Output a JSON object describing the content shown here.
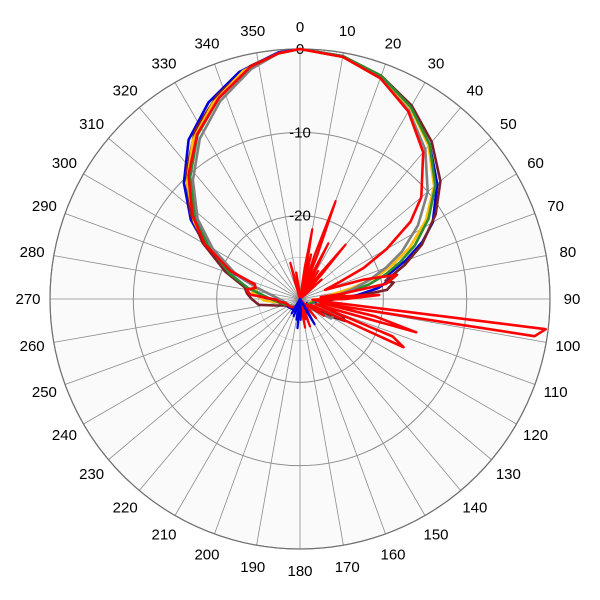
{
  "chart_data": {
    "type": "polar-line",
    "title": "",
    "angle_unit": "degrees",
    "angle_zero": "top",
    "angle_direction": "clockwise",
    "angle_ticks": [
      0,
      10,
      20,
      30,
      40,
      50,
      60,
      70,
      80,
      90,
      100,
      110,
      120,
      130,
      140,
      150,
      160,
      170,
      180,
      190,
      200,
      210,
      220,
      230,
      240,
      250,
      260,
      270,
      280,
      290,
      300,
      310,
      320,
      330,
      340,
      350
    ],
    "radial_ticks": [
      0,
      -10,
      -20
    ],
    "radial_range": [
      -30,
      0
    ],
    "grid": true,
    "series": [
      {
        "color": "#0000dd",
        "points": [
          [
            0,
            0
          ],
          [
            10,
            -0.4
          ],
          [
            20,
            -1.6
          ],
          [
            30,
            -3.5
          ],
          [
            40,
            -5.8
          ],
          [
            50,
            -8.5
          ],
          [
            60,
            -11.6
          ],
          [
            65,
            -13.8
          ],
          [
            70,
            -16.5
          ],
          [
            75,
            -19.2
          ],
          [
            78,
            -19.0
          ],
          [
            82,
            -20.5
          ],
          [
            86,
            -23
          ],
          [
            90,
            -25.5
          ],
          [
            95,
            -27.5
          ],
          [
            100,
            -28
          ],
          [
            120,
            -29
          ],
          [
            150,
            -29
          ],
          [
            180,
            -29
          ],
          [
            200,
            -28.5
          ],
          [
            250,
            -28
          ],
          [
            265,
            -27
          ],
          [
            272,
            -25.8
          ],
          [
            276,
            -24.8
          ],
          [
            282,
            -24.6
          ],
          [
            286,
            -24.2
          ],
          [
            292,
            -21
          ],
          [
            300,
            -16.8
          ],
          [
            306,
            -13.8
          ],
          [
            315,
            -10.3
          ],
          [
            325,
            -6.7
          ],
          [
            335,
            -4.0
          ],
          [
            345,
            -1.8
          ],
          [
            355,
            -0.3
          ],
          [
            360,
            0
          ]
        ]
      },
      {
        "color": "#7a1f2b",
        "points": [
          [
            0,
            0
          ],
          [
            10,
            -0.4
          ],
          [
            20,
            -1.5
          ],
          [
            30,
            -3.2
          ],
          [
            40,
            -5.4
          ],
          [
            50,
            -8.0
          ],
          [
            58,
            -10.8
          ],
          [
            66,
            -14.0
          ],
          [
            72,
            -16.8
          ],
          [
            75,
            -18.3
          ],
          [
            78,
            -19.5
          ],
          [
            80,
            -18.6
          ],
          [
            84,
            -19.5
          ],
          [
            88,
            -24
          ],
          [
            95,
            -27.5
          ],
          [
            110,
            -27
          ],
          [
            112,
            -24.5
          ],
          [
            116,
            -24.0
          ],
          [
            120,
            -26
          ],
          [
            140,
            -29
          ],
          [
            180,
            -29
          ],
          [
            240,
            -28.5
          ],
          [
            255,
            -27
          ],
          [
            262,
            -25
          ],
          [
            270,
            -24.2
          ],
          [
            276,
            -23.6
          ],
          [
            282,
            -23.2
          ],
          [
            290,
            -20.5
          ],
          [
            300,
            -16.5
          ],
          [
            308,
            -13.3
          ],
          [
            318,
            -9.6
          ],
          [
            328,
            -6.2
          ],
          [
            338,
            -3.6
          ],
          [
            348,
            -1.4
          ],
          [
            355,
            -0.4
          ],
          [
            360,
            0
          ]
        ]
      },
      {
        "color": "#ffbf00",
        "points": [
          [
            0,
            0
          ],
          [
            10,
            -0.5
          ],
          [
            20,
            -1.6
          ],
          [
            30,
            -3.5
          ],
          [
            40,
            -6.0
          ],
          [
            50,
            -9.0
          ],
          [
            58,
            -12.2
          ],
          [
            65,
            -15.5
          ],
          [
            70,
            -18.3
          ],
          [
            74,
            -20.5
          ],
          [
            78,
            -23.5
          ],
          [
            85,
            -27
          ],
          [
            100,
            -28.5
          ],
          [
            150,
            -29
          ],
          [
            180,
            -29
          ],
          [
            240,
            -28.5
          ],
          [
            260,
            -27.5
          ],
          [
            268,
            -25.6
          ],
          [
            274,
            -25.0
          ],
          [
            278,
            -24.2
          ],
          [
            283,
            -24.7
          ],
          [
            288,
            -23.6
          ],
          [
            293,
            -20.5
          ],
          [
            300,
            -17.2
          ],
          [
            306,
            -14.3
          ],
          [
            316,
            -10.5
          ],
          [
            326,
            -7.0
          ],
          [
            336,
            -4.3
          ],
          [
            346,
            -1.8
          ],
          [
            355,
            -0.4
          ],
          [
            360,
            0
          ]
        ]
      },
      {
        "color": "#2e8b2e",
        "points": [
          [
            0,
            0
          ],
          [
            10,
            -0.4
          ],
          [
            20,
            -1.5
          ],
          [
            30,
            -3.4
          ],
          [
            40,
            -5.8
          ],
          [
            50,
            -8.8
          ],
          [
            58,
            -11.8
          ],
          [
            65,
            -14.8
          ],
          [
            70,
            -17.3
          ],
          [
            74,
            -19.3
          ],
          [
            78,
            -21.5
          ],
          [
            84,
            -25
          ],
          [
            95,
            -28
          ],
          [
            150,
            -29
          ],
          [
            180,
            -29
          ],
          [
            240,
            -28.5
          ],
          [
            260,
            -27.5
          ],
          [
            270,
            -26.5
          ],
          [
            276,
            -25.5
          ],
          [
            282,
            -23.6
          ],
          [
            290,
            -21
          ],
          [
            300,
            -17.3
          ],
          [
            308,
            -14.0
          ],
          [
            318,
            -10.3
          ],
          [
            328,
            -6.8
          ],
          [
            338,
            -4.0
          ],
          [
            348,
            -1.5
          ],
          [
            355,
            -0.4
          ],
          [
            360,
            0
          ]
        ]
      },
      {
        "color": "#808080",
        "points": [
          [
            0,
            0
          ],
          [
            10,
            -0.5
          ],
          [
            20,
            -1.8
          ],
          [
            30,
            -3.9
          ],
          [
            40,
            -6.6
          ],
          [
            50,
            -10.0
          ],
          [
            58,
            -13.3
          ],
          [
            65,
            -16.5
          ],
          [
            70,
            -19.0
          ],
          [
            75,
            -21.5
          ],
          [
            80,
            -23.8
          ],
          [
            88,
            -26.5
          ],
          [
            95,
            -28
          ],
          [
            112,
            -27
          ],
          [
            116,
            -25.5
          ],
          [
            122,
            -25.6
          ],
          [
            130,
            -28
          ],
          [
            150,
            -29
          ],
          [
            180,
            -29
          ],
          [
            240,
            -28.5
          ],
          [
            262,
            -28
          ],
          [
            270,
            -27.5
          ],
          [
            278,
            -26.5
          ],
          [
            285,
            -24.5
          ],
          [
            292,
            -21.5
          ],
          [
            300,
            -17.9
          ],
          [
            308,
            -14.4
          ],
          [
            318,
            -10.8
          ],
          [
            328,
            -7.3
          ],
          [
            338,
            -4.4
          ],
          [
            348,
            -1.8
          ],
          [
            355,
            -0.4
          ],
          [
            360,
            0
          ]
        ]
      },
      {
        "color": "#ff0000",
        "points": [
          [
            0,
            0
          ],
          [
            10,
            -0.5
          ],
          [
            20,
            -1.8
          ],
          [
            30,
            -4.0
          ],
          [
            40,
            -7.0
          ],
          [
            50,
            -11.0
          ],
          [
            55,
            -13.8
          ],
          [
            60,
            -18.0
          ],
          [
            64,
            -21.5
          ],
          [
            67,
            -25.0
          ],
          [
            70,
            -26.8
          ],
          [
            73,
            -22.0
          ],
          [
            76,
            -18.0
          ],
          [
            80,
            -19.5
          ],
          [
            83,
            -25.0
          ],
          [
            85,
            -27.5
          ],
          [
            87,
            -20.5
          ],
          [
            90,
            -24.5
          ],
          [
            93,
            -28.5
          ],
          [
            95,
            -28.0
          ],
          [
            97,
            -0.3
          ],
          [
            99,
            -1.5
          ],
          [
            101,
            -27.5
          ],
          [
            103,
            -20.8
          ],
          [
            106,
            -15.5
          ],
          [
            108,
            -28.0
          ],
          [
            112,
            -18.0
          ],
          [
            115,
            -16.3
          ],
          [
            118,
            -28.5
          ],
          [
            125,
            -26.5
          ],
          [
            130,
            -29
          ],
          [
            150,
            -29
          ],
          [
            180,
            -29
          ],
          [
            230,
            -28.5
          ],
          [
            255,
            -28.2
          ],
          [
            262,
            -27.5
          ],
          [
            268,
            -27.2
          ],
          [
            275,
            -24.0
          ],
          [
            280,
            -23.5
          ],
          [
            284,
            -24.5
          ],
          [
            288,
            -24.3
          ],
          [
            292,
            -21.0
          ],
          [
            300,
            -16.8
          ],
          [
            308,
            -13.6
          ],
          [
            318,
            -10.0
          ],
          [
            328,
            -6.7
          ],
          [
            338,
            -4.0
          ],
          [
            348,
            -1.5
          ],
          [
            355,
            -0.4
          ],
          [
            360,
            0
          ]
        ]
      }
    ],
    "spikes": [
      {
        "color": "#ff0000",
        "rays": [
          [
            10,
            -21.5
          ],
          [
            14,
            -24.5
          ],
          [
            20,
            -17.5
          ],
          [
            27,
            -22.5
          ],
          [
            33,
            -26
          ],
          [
            40,
            -21.5
          ],
          [
            48,
            -26.5
          ],
          [
            140,
            -27
          ],
          [
            160,
            -26.5
          ],
          [
            165,
            -27.5
          ],
          [
            170,
            -26.5
          ],
          [
            345,
            -25.5
          ],
          [
            352,
            -26.8
          ]
        ]
      },
      {
        "color": "#0000dd",
        "rays": [
          [
            150,
            -26.5
          ],
          [
            178,
            -27.5
          ],
          [
            185,
            -26.5
          ],
          [
            190,
            -27.5
          ],
          [
            200,
            -27.8
          ],
          [
            210,
            -28
          ]
        ]
      }
    ]
  }
}
